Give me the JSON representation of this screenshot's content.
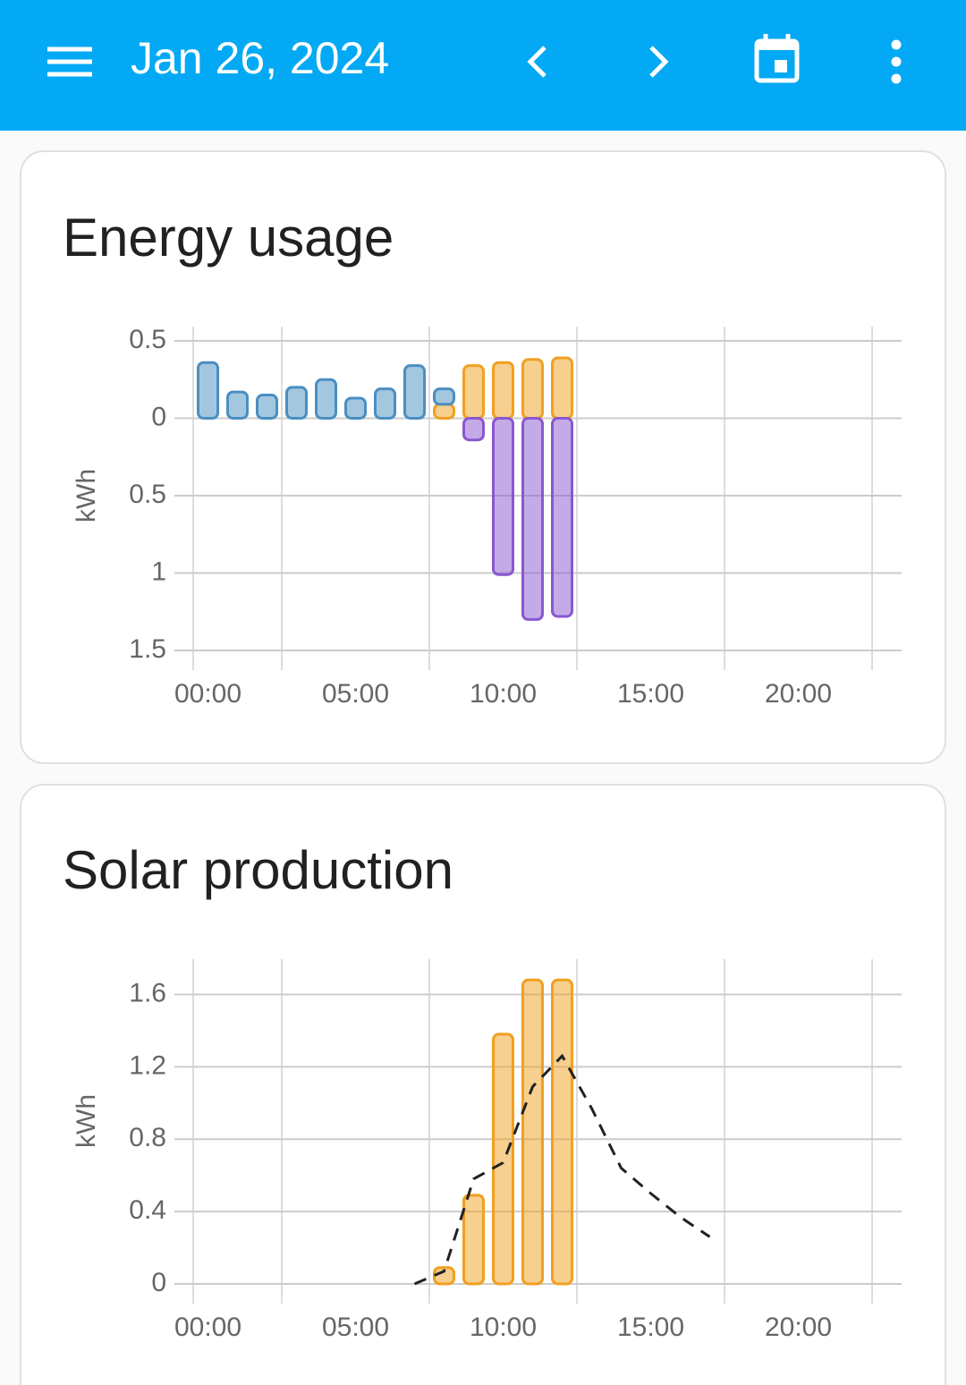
{
  "header": {
    "title": "Jan 26, 2024"
  },
  "chart_data": [
    {
      "type": "bar",
      "title": "Energy usage",
      "y_label": "kWh",
      "stacked": true,
      "grid": true,
      "categories": [
        "00:00",
        null,
        null,
        null,
        null,
        "05:00",
        null,
        null,
        null,
        null,
        "10:00",
        null,
        null,
        null,
        null,
        "15:00",
        null,
        null,
        null,
        null,
        "20:00",
        null,
        null,
        null
      ],
      "ylim": [
        -1.5,
        0.5
      ],
      "yticks": [
        0.5,
        0,
        {
          "value": -0.5,
          "label": "0.5"
        },
        {
          "value": -1,
          "label": "1"
        },
        {
          "value": -1.5,
          "label": "1.5"
        }
      ],
      "series": [
        {
          "color": "#f0a020",
          "values": [
            null,
            null,
            null,
            null,
            null,
            null,
            null,
            null,
            0.09,
            0.34,
            0.36,
            0.38,
            0.39,
            null,
            null,
            null,
            null,
            null,
            null,
            null,
            null,
            null,
            null,
            null
          ]
        },
        {
          "color": "#4a8fc2",
          "values": [
            0.36,
            0.17,
            0.15,
            0.2,
            0.25,
            0.13,
            0.19,
            0.34,
            0.1,
            null,
            null,
            null,
            null,
            null,
            null,
            null,
            null,
            null,
            null,
            null,
            null,
            null,
            null,
            null
          ]
        },
        {
          "color": "#8a57d0",
          "values": [
            null,
            null,
            null,
            null,
            null,
            null,
            null,
            null,
            null,
            -0.14,
            -1.01,
            -1.3,
            -1.28,
            null,
            null,
            null,
            null,
            null,
            null,
            null,
            null,
            null,
            null,
            null
          ]
        }
      ]
    },
    {
      "type": "bar",
      "title": "Solar production",
      "y_label": "kWh",
      "grid": true,
      "categories": [
        "00:00",
        null,
        null,
        null,
        null,
        "05:00",
        null,
        null,
        null,
        null,
        "10:00",
        null,
        null,
        null,
        null,
        "15:00",
        null,
        null,
        null,
        null,
        "20:00",
        null,
        null,
        null
      ],
      "ylim": [
        0,
        1.8
      ],
      "yticks": [
        0,
        0.4,
        0.8,
        1.2,
        1.6
      ],
      "series": [
        {
          "type": "bar",
          "color": "#f0a020",
          "values": [
            null,
            null,
            null,
            null,
            null,
            null,
            null,
            null,
            0.09,
            0.49,
            1.38,
            1.68,
            1.68,
            null,
            null,
            null,
            null,
            null,
            null,
            null,
            null,
            null,
            null,
            null
          ]
        },
        {
          "type": "line",
          "color": "#212121",
          "dashed": true,
          "values": [
            null,
            null,
            null,
            null,
            null,
            null,
            null,
            0,
            0.07,
            0.58,
            0.67,
            1.09,
            1.26,
            0.97,
            0.64,
            0.5,
            0.37,
            0.26,
            null,
            null,
            null,
            null,
            null,
            null
          ]
        }
      ]
    }
  ]
}
